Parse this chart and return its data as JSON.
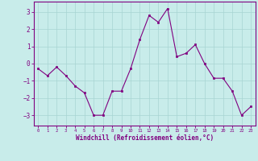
{
  "x": [
    0,
    1,
    2,
    3,
    4,
    5,
    6,
    7,
    8,
    9,
    10,
    11,
    12,
    13,
    14,
    15,
    16,
    17,
    18,
    19,
    20,
    21,
    22,
    23
  ],
  "y": [
    -0.3,
    -0.7,
    -0.2,
    -0.7,
    -1.3,
    -1.7,
    -3.0,
    -3.0,
    -1.6,
    -1.6,
    -0.3,
    1.4,
    2.8,
    2.4,
    3.2,
    0.4,
    0.6,
    1.1,
    0.0,
    -0.85,
    -0.85,
    -1.6,
    -3.0,
    -2.5
  ],
  "line_color": "#800080",
  "marker_color": "#800080",
  "bg_color": "#c8ecea",
  "grid_color": "#a8d4d2",
  "axis_color": "#800080",
  "tick_color": "#800080",
  "xlabel": "Windchill (Refroidissement éolien,°C)",
  "xlabel_color": "#800080",
  "ylim": [
    -3.6,
    3.6
  ],
  "xlim": [
    -0.5,
    23.5
  ],
  "yticks": [
    -3,
    -2,
    -1,
    0,
    1,
    2,
    3
  ],
  "xtick_labels": [
    "0",
    "1",
    "2",
    "3",
    "4",
    "5",
    "6",
    "7",
    "8",
    "9",
    "10",
    "11",
    "12",
    "13",
    "14",
    "15",
    "16",
    "17",
    "18",
    "19",
    "20",
    "21",
    "22",
    "23"
  ]
}
